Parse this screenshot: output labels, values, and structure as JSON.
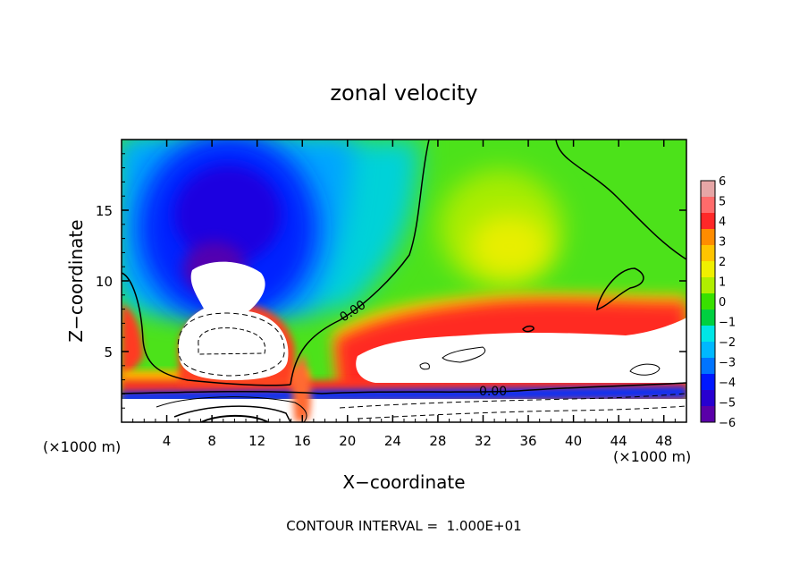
{
  "chart_data": {
    "type": "heatmap",
    "title": "zonal velocity",
    "xlabel": "X−coordinate",
    "ylabel": "Z−coordinate",
    "x_unit": "(×1000 m)",
    "z_unit": "(×1000 m)",
    "xlim": [
      0,
      50
    ],
    "ylim": [
      0,
      20
    ],
    "x_ticks": [
      4,
      8,
      12,
      16,
      20,
      24,
      28,
      32,
      36,
      40,
      44,
      48
    ],
    "y_ticks": [
      5,
      10,
      15
    ],
    "colorbar": {
      "min": -6,
      "max": 6,
      "labels": [
        "6",
        "5",
        "4",
        "3",
        "2",
        "1",
        "0",
        "−1",
        "−2",
        "−3",
        "−4",
        "−5",
        "−6"
      ],
      "colors": [
        "#e6a6a6",
        "#ff6b6b",
        "#ff2828",
        "#ff8c00",
        "#ffc400",
        "#f0f000",
        "#b0ee00",
        "#38e000",
        "#00d040",
        "#00e6e6",
        "#00b8ff",
        "#0074ff",
        "#0018ff",
        "#2800d0",
        "#5a00a8"
      ]
    },
    "contour_labels": [
      "0.00",
      "0.00"
    ],
    "footer": "CONTOUR INTERVAL =  1.000E+01",
    "features": [
      {
        "name": "negative jet core",
        "x": 10,
        "z": 13,
        "value": -5.5
      },
      {
        "name": "positive upper region",
        "x": 33,
        "z": 14,
        "value": 1.5
      },
      {
        "name": "strong positive band",
        "x": 32,
        "z": 5,
        "value": 6
      },
      {
        "name": "surface positive lobe",
        "x": 9,
        "z": 0.5,
        "value": 6
      },
      {
        "name": "left positive edge",
        "x": 0,
        "z": 6,
        "value": 4
      }
    ]
  }
}
